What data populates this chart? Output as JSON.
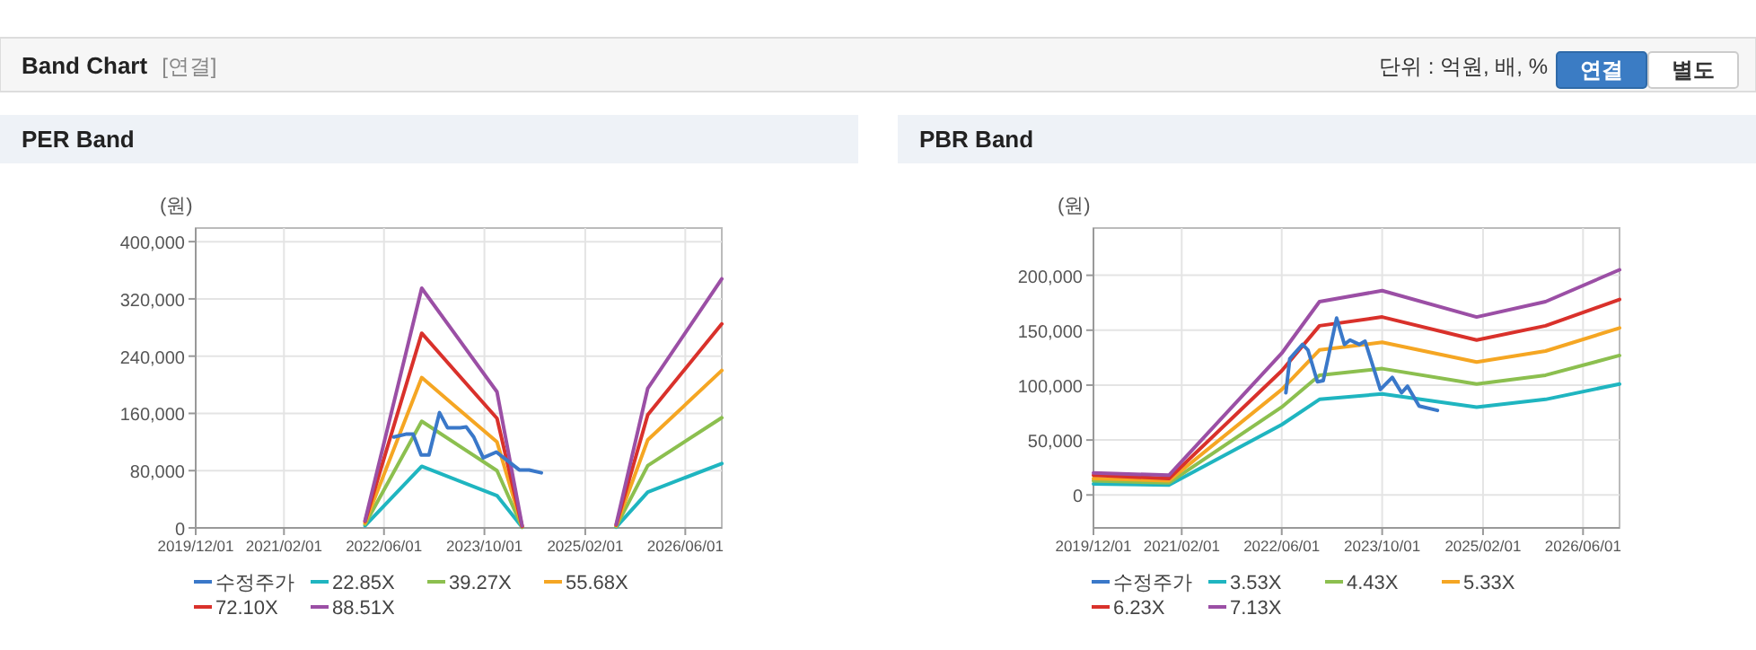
{
  "chart_data": [
    {
      "type": "other",
      "title": "Band Chart",
      "annotations": [
        "[연결]",
        "단위 : 억원, 배, %",
        "연결",
        "별도"
      ]
    },
    {
      "type": "line",
      "title": "PER Band",
      "ylabel": "(원)",
      "xlim": [
        "2019-12-01",
        "2026-11-25"
      ],
      "ylim": [
        0,
        419000
      ],
      "xticks": [
        {
          "value": "2019-12-01",
          "label": "2019/12/01"
        },
        {
          "value": "2021-02-01",
          "label": "2021/02/01"
        },
        {
          "value": "2022-06-01",
          "label": "2022/06/01"
        },
        {
          "value": "2023-10-01",
          "label": "2023/10/01"
        },
        {
          "value": "2025-02-01",
          "label": "2025/02/01"
        },
        {
          "value": "2026-06-01",
          "label": "2026/06/01"
        }
      ],
      "yticks": [
        {
          "value": 0,
          "label": "0"
        },
        {
          "value": 80000,
          "label": "80,000"
        },
        {
          "value": 160000,
          "label": "160,000"
        },
        {
          "value": 240000,
          "label": "240,000"
        },
        {
          "value": 320000,
          "label": "320,000"
        },
        {
          "value": 400000,
          "label": "400,000"
        }
      ],
      "x": [
        "2022-03-01",
        "2022-12-01",
        "2023-12-01",
        "2024-04-01"
      ],
      "grid": true,
      "legend": "bottom",
      "marker": "none",
      "line_style": "solid",
      "series": [
        {
          "name": "수정주가",
          "color": "#3a78c9",
          "x": [
            "2022-07-19",
            "2022-09-15",
            "2022-10-20",
            "2022-11-28",
            "2023-01-05",
            "2023-02-25",
            "2023-04-05",
            "2023-06-05",
            "2023-07-05",
            "2023-08-10",
            "2023-09-25",
            "2023-11-28",
            "2024-01-25",
            "2024-03-18",
            "2024-05-05",
            "2024-07-03"
          ],
          "values": [
            127000,
            131000,
            131000,
            102000,
            102000,
            161000,
            140000,
            140000,
            141000,
            127000,
            98000,
            106000,
            93000,
            81000,
            81000,
            77000
          ]
        },
        {
          "name": "22.85X",
          "color": "#1fb5c0",
          "values": [
            3000,
            86000,
            45000,
            1000
          ]
        },
        {
          "name": "39.27X",
          "color": "#8cbf4f",
          "values": [
            5000,
            149000,
            80000,
            1000
          ]
        },
        {
          "name": "55.68X",
          "color": "#f5a623",
          "values": [
            7000,
            210000,
            120000,
            2000
          ]
        },
        {
          "name": "72.10X",
          "color": "#d9312b",
          "values": [
            9000,
            272000,
            153000,
            2000
          ]
        },
        {
          "name": "88.51X",
          "color": "#9b4fa5",
          "values": [
            10000,
            335000,
            190000,
            3000
          ]
        },
        {
          "color": "#1fb5c0",
          "x": [
            "2025-07-01",
            "2025-12-01",
            "2026-11-25"
          ],
          "values": [
            1000,
            50000,
            90000
          ]
        },
        {
          "color": "#8cbf4f",
          "x": [
            "2025-07-01",
            "2025-12-01",
            "2026-11-25"
          ],
          "values": [
            2000,
            87000,
            154000
          ]
        },
        {
          "color": "#f5a623",
          "x": [
            "2025-07-01",
            "2025-12-01",
            "2026-11-25"
          ],
          "values": [
            3000,
            123000,
            220000
          ]
        },
        {
          "color": "#d9312b",
          "x": [
            "2025-07-01",
            "2025-12-01",
            "2026-11-25"
          ],
          "values": [
            4000,
            158000,
            285000
          ]
        },
        {
          "color": "#9b4fa5",
          "x": [
            "2025-07-01",
            "2025-12-01",
            "2026-11-25"
          ],
          "values": [
            5000,
            195000,
            348000
          ]
        }
      ]
    },
    {
      "type": "line",
      "title": "PBR Band",
      "ylabel": "(원)",
      "xlim": [
        "2019-12-01",
        "2026-11-25"
      ],
      "ylim": [
        -30000,
        243000
      ],
      "xticks": [
        {
          "value": "2019-12-01",
          "label": "2019/12/01"
        },
        {
          "value": "2021-02-01",
          "label": "2021/02/01"
        },
        {
          "value": "2022-06-01",
          "label": "2022/06/01"
        },
        {
          "value": "2023-10-01",
          "label": "2023/10/01"
        },
        {
          "value": "2025-02-01",
          "label": "2025/02/01"
        },
        {
          "value": "2026-06-01",
          "label": "2026/06/01"
        }
      ],
      "yticks": [
        {
          "value": 0,
          "label": "0"
        },
        {
          "value": 50000,
          "label": "50,000"
        },
        {
          "value": 100000,
          "label": "100,000"
        },
        {
          "value": 150000,
          "label": "150,000"
        },
        {
          "value": 200000,
          "label": "200,000"
        }
      ],
      "x": [
        "2019-12-01",
        "2020-12-01",
        "2022-06-01",
        "2022-12-01",
        "2023-10-01",
        "2025-01-01",
        "2025-12-01",
        "2026-11-25"
      ],
      "grid": true,
      "legend": "bottom",
      "marker": "none",
      "line_style": "solid",
      "series": [
        {
          "name": "수정주가",
          "color": "#3a78c9",
          "x": [
            "2022-06-21",
            "2022-07-10",
            "2022-09-10",
            "2022-10-06",
            "2022-11-21",
            "2022-12-19",
            "2023-02-22",
            "2023-04-01",
            "2023-04-28",
            "2023-06-12",
            "2023-07-10",
            "2023-09-22",
            "2023-11-19",
            "2024-01-03",
            "2024-02-01",
            "2024-03-28",
            "2024-06-25"
          ],
          "values": [
            93000,
            124000,
            137000,
            132000,
            103000,
            104000,
            161000,
            137000,
            141000,
            137000,
            140000,
            96000,
            107000,
            93000,
            99000,
            81000,
            77000
          ]
        },
        {
          "name": "3.53X",
          "color": "#1fb5c0",
          "values": [
            10000,
            9000,
            64000,
            87000,
            92000,
            80000,
            87000,
            101000
          ]
        },
        {
          "name": "4.43X",
          "color": "#8cbf4f",
          "values": [
            13000,
            11000,
            80000,
            109000,
            115000,
            101000,
            109000,
            127000
          ]
        },
        {
          "name": "5.33X",
          "color": "#f5a623",
          "values": [
            15000,
            13000,
            96000,
            132000,
            139000,
            121000,
            131000,
            152000
          ]
        },
        {
          "name": "6.23X",
          "color": "#d9312b",
          "values": [
            18000,
            15000,
            113000,
            154000,
            162000,
            141000,
            154000,
            178000
          ]
        },
        {
          "name": "7.13X",
          "color": "#9b4fa5",
          "values": [
            20000,
            18000,
            129000,
            176000,
            186000,
            162000,
            176000,
            205000
          ]
        }
      ]
    }
  ]
}
